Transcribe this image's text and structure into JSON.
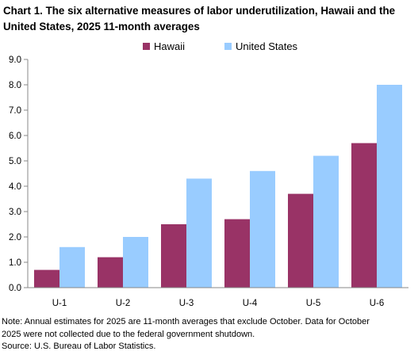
{
  "title_line1": "Chart 1. The six alternative measures of labor underutilization, Hawaii and the",
  "title_line2": "United States, 2025 11-month averages",
  "chart_data": {
    "type": "bar",
    "categories": [
      "U-1",
      "U-2",
      "U-3",
      "U-4",
      "U-5",
      "U-6"
    ],
    "series": [
      {
        "name": "Hawaii",
        "color": "#993366",
        "values": [
          0.7,
          1.2,
          2.5,
          2.7,
          3.7,
          5.7
        ]
      },
      {
        "name": "United States",
        "color": "#99ccff",
        "values": [
          1.6,
          2.0,
          4.3,
          4.6,
          5.2,
          8.0
        ]
      }
    ],
    "ylim": [
      0,
      9
    ],
    "yticks": [
      "0.0",
      "1.0",
      "2.0",
      "3.0",
      "4.0",
      "5.0",
      "6.0",
      "7.0",
      "8.0",
      "9.0"
    ],
    "grid": false,
    "legend_position": "top"
  },
  "note_line1": "Note: Annual estimates for 2025 are 11-month averages that exclude October. Data for October",
  "note_line2": "2025 were not collected due to the federal government shutdown.",
  "source": "Source: U.S. Bureau of Labor Statistics."
}
